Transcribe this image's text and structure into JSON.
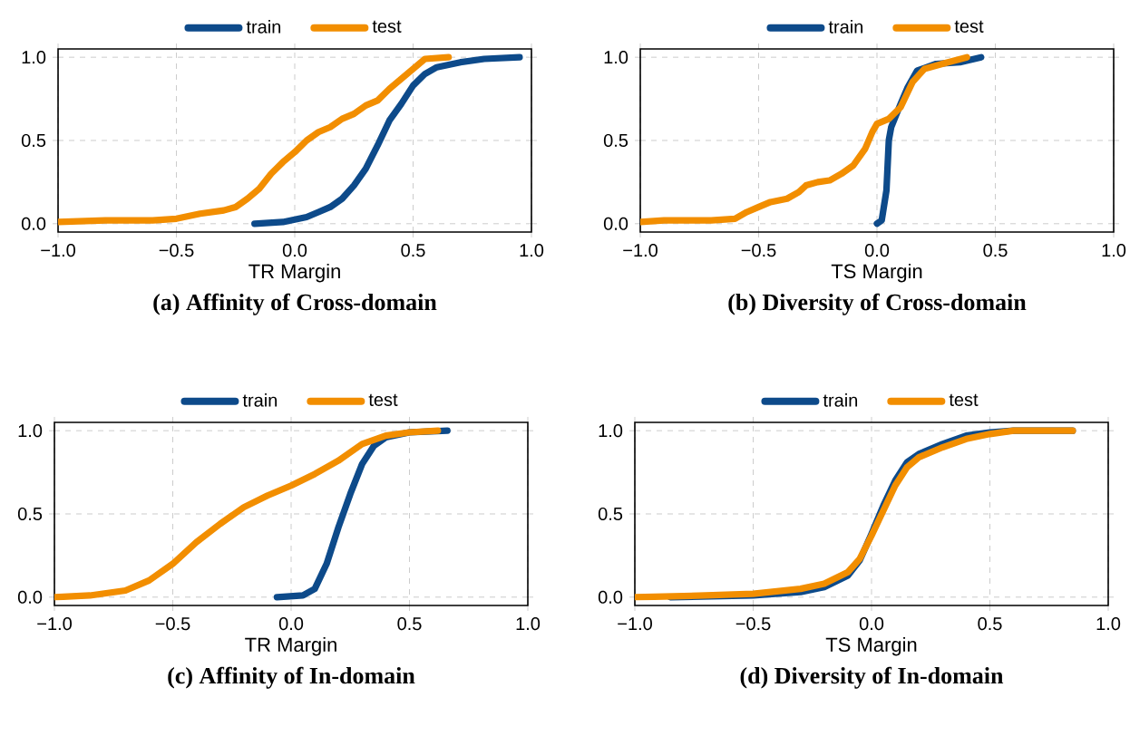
{
  "chart_data": [
    {
      "type": "line",
      "title": "(a) Affinity of Cross-domain",
      "xlabel": "TR Margin",
      "legend": "top",
      "grid": true,
      "line_style": "solid",
      "marker": "none",
      "xlim": [
        -1,
        1
      ],
      "ylim": [
        -0.05,
        1.05
      ],
      "xticks": [
        {
          "value": -1,
          "label": "−1.0"
        },
        {
          "value": -0.5,
          "label": "−0.5"
        },
        {
          "value": 0,
          "label": "0.0"
        },
        {
          "value": 0.5,
          "label": "0.5"
        },
        {
          "value": 1,
          "label": "1.0"
        }
      ],
      "yticks": [
        {
          "value": 0,
          "label": "0.0"
        },
        {
          "value": 0.5,
          "label": "0.5"
        },
        {
          "value": 1,
          "label": "1.0"
        }
      ],
      "series": [
        {
          "name": "train",
          "color": "#0d4a8a",
          "x": [
            -0.17,
            -0.05,
            0.05,
            0.1,
            0.15,
            0.2,
            0.25,
            0.3,
            0.35,
            0.4,
            0.45,
            0.5,
            0.55,
            0.6,
            0.7,
            0.8,
            0.95
          ],
          "values": [
            0,
            0.01,
            0.04,
            0.07,
            0.1,
            0.15,
            0.23,
            0.33,
            0.47,
            0.62,
            0.72,
            0.83,
            0.9,
            0.94,
            0.97,
            0.99,
            1.0
          ]
        },
        {
          "name": "test",
          "color": "#f28e00",
          "x": [
            -1,
            -0.8,
            -0.6,
            -0.5,
            -0.4,
            -0.3,
            -0.25,
            -0.2,
            -0.15,
            -0.1,
            -0.05,
            0,
            0.05,
            0.1,
            0.15,
            0.2,
            0.25,
            0.3,
            0.35,
            0.4,
            0.45,
            0.5,
            0.55,
            0.65
          ],
          "values": [
            0.01,
            0.02,
            0.02,
            0.03,
            0.06,
            0.08,
            0.1,
            0.15,
            0.21,
            0.3,
            0.37,
            0.43,
            0.5,
            0.55,
            0.58,
            0.63,
            0.66,
            0.71,
            0.74,
            0.81,
            0.87,
            0.93,
            0.99,
            1.0
          ]
        }
      ]
    },
    {
      "type": "line",
      "title": "(b) Diversity of Cross-domain",
      "xlabel": "TS Margin",
      "legend": "top",
      "grid": true,
      "line_style": "solid",
      "marker": "none",
      "xlim": [
        -1,
        1
      ],
      "ylim": [
        -0.05,
        1.05
      ],
      "xticks": [
        {
          "value": -1,
          "label": "−1.0"
        },
        {
          "value": -0.5,
          "label": "−0.5"
        },
        {
          "value": 0,
          "label": "0.0"
        },
        {
          "value": 0.5,
          "label": "0.5"
        },
        {
          "value": 1,
          "label": "1.0"
        }
      ],
      "yticks": [
        {
          "value": 0,
          "label": "0.0"
        },
        {
          "value": 0.5,
          "label": "0.5"
        },
        {
          "value": 1,
          "label": "1.0"
        }
      ],
      "series": [
        {
          "name": "train",
          "color": "#0d4a8a",
          "x": [
            0,
            0.02,
            0.04,
            0.05,
            0.06,
            0.08,
            0.1,
            0.13,
            0.17,
            0.25,
            0.35,
            0.44
          ],
          "values": [
            0,
            0.02,
            0.2,
            0.5,
            0.58,
            0.65,
            0.72,
            0.82,
            0.92,
            0.96,
            0.97,
            1.0
          ]
        },
        {
          "name": "test",
          "color": "#f28e00",
          "x": [
            -1,
            -0.9,
            -0.7,
            -0.6,
            -0.55,
            -0.5,
            -0.45,
            -0.38,
            -0.33,
            -0.3,
            -0.25,
            -0.2,
            -0.15,
            -0.1,
            -0.05,
            -0.02,
            0,
            0.05,
            0.1,
            0.15,
            0.2,
            0.3,
            0.38
          ],
          "values": [
            0.01,
            0.02,
            0.02,
            0.03,
            0.07,
            0.1,
            0.13,
            0.15,
            0.19,
            0.23,
            0.25,
            0.26,
            0.3,
            0.35,
            0.45,
            0.55,
            0.6,
            0.63,
            0.7,
            0.85,
            0.93,
            0.97,
            1.0
          ]
        }
      ]
    },
    {
      "type": "line",
      "title": "(c) Affinity of In-domain",
      "xlabel": "TR Margin",
      "legend": "top",
      "grid": true,
      "line_style": "solid",
      "marker": "none",
      "xlim": [
        -1,
        1
      ],
      "ylim": [
        -0.05,
        1.05
      ],
      "xticks": [
        {
          "value": -1,
          "label": "−1.0"
        },
        {
          "value": -0.5,
          "label": "−0.5"
        },
        {
          "value": 0,
          "label": "0.0"
        },
        {
          "value": 0.5,
          "label": "0.5"
        },
        {
          "value": 1,
          "label": "1.0"
        }
      ],
      "yticks": [
        {
          "value": 0,
          "label": "0.0"
        },
        {
          "value": 0.5,
          "label": "0.5"
        },
        {
          "value": 1,
          "label": "1.0"
        }
      ],
      "series": [
        {
          "name": "train",
          "color": "#0d4a8a",
          "x": [
            -0.06,
            0.05,
            0.1,
            0.15,
            0.2,
            0.25,
            0.3,
            0.35,
            0.4,
            0.5,
            0.66
          ],
          "values": [
            0,
            0.01,
            0.05,
            0.2,
            0.42,
            0.62,
            0.8,
            0.91,
            0.96,
            0.99,
            1.0
          ]
        },
        {
          "name": "test",
          "color": "#f28e00",
          "x": [
            -1,
            -0.85,
            -0.7,
            -0.6,
            -0.5,
            -0.4,
            -0.3,
            -0.2,
            -0.1,
            0,
            0.1,
            0.2,
            0.3,
            0.4,
            0.5,
            0.62
          ],
          "values": [
            0,
            0.01,
            0.04,
            0.1,
            0.2,
            0.33,
            0.44,
            0.54,
            0.61,
            0.67,
            0.74,
            0.82,
            0.92,
            0.97,
            0.99,
            1.0
          ]
        }
      ]
    },
    {
      "type": "line",
      "title": "(d) Diversity of In-domain",
      "xlabel": "TS Margin",
      "legend": "top",
      "grid": true,
      "line_style": "solid",
      "marker": "none",
      "xlim": [
        -1,
        1
      ],
      "ylim": [
        -0.05,
        1.05
      ],
      "xticks": [
        {
          "value": -1,
          "label": "−1.0"
        },
        {
          "value": -0.5,
          "label": "−0.5"
        },
        {
          "value": 0,
          "label": "0.0"
        },
        {
          "value": 0.5,
          "label": "0.5"
        },
        {
          "value": 1,
          "label": "1.0"
        }
      ],
      "yticks": [
        {
          "value": 0,
          "label": "0.0"
        },
        {
          "value": 0.5,
          "label": "0.5"
        },
        {
          "value": 1,
          "label": "1.0"
        }
      ],
      "series": [
        {
          "name": "train",
          "color": "#0d4a8a",
          "x": [
            -0.85,
            -0.5,
            -0.3,
            -0.2,
            -0.1,
            -0.05,
            0,
            0.05,
            0.1,
            0.15,
            0.2,
            0.3,
            0.4,
            0.5,
            0.6,
            0.85
          ],
          "values": [
            0,
            0.01,
            0.03,
            0.06,
            0.13,
            0.22,
            0.38,
            0.55,
            0.7,
            0.81,
            0.86,
            0.92,
            0.97,
            0.99,
            1.0,
            1.0
          ]
        },
        {
          "name": "test",
          "color": "#f28e00",
          "x": [
            -1,
            -0.7,
            -0.5,
            -0.3,
            -0.2,
            -0.1,
            -0.05,
            0,
            0.05,
            0.1,
            0.15,
            0.2,
            0.3,
            0.4,
            0.5,
            0.6,
            0.85
          ],
          "values": [
            0,
            0.01,
            0.02,
            0.05,
            0.08,
            0.15,
            0.23,
            0.37,
            0.52,
            0.67,
            0.78,
            0.84,
            0.9,
            0.95,
            0.98,
            1.0,
            1.0
          ]
        }
      ]
    }
  ]
}
